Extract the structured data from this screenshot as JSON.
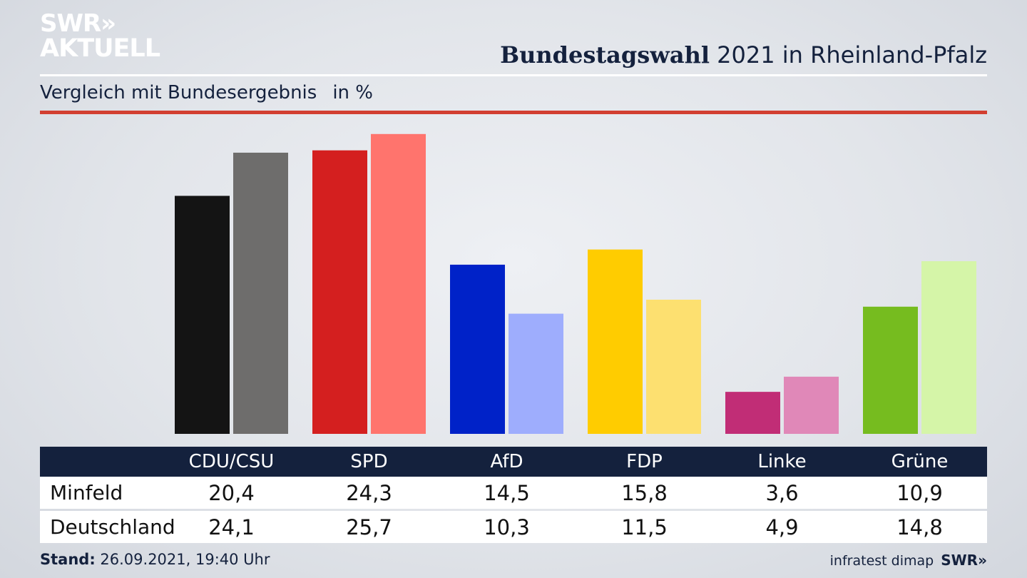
{
  "logo": {
    "line1": "SWR»",
    "line2": "AKTUELL"
  },
  "header": {
    "title_bold": "Bundestagswahl",
    "title_rest": " 2021 in Rheinland-Pfalz",
    "subtitle": "Vergleich mit Bundesergebnis",
    "unit": "in %"
  },
  "colors": {
    "accent_red": "#d23f31",
    "navy": "#14213d"
  },
  "chart_data": {
    "type": "bar",
    "categories": [
      "CDU/CSU",
      "SPD",
      "AfD",
      "FDP",
      "Linke",
      "Grüne"
    ],
    "series": [
      {
        "name": "Minfeld",
        "values": [
          20.4,
          24.3,
          14.5,
          15.8,
          3.6,
          10.9
        ],
        "colors": [
          "#141414",
          "#d41f1f",
          "#0022c8",
          "#ffcc00",
          "#c12d76",
          "#76bc1f"
        ]
      },
      {
        "name": "Deutschland",
        "values": [
          24.1,
          25.7,
          10.3,
          11.5,
          4.9,
          14.8
        ],
        "colors": [
          "#6e6d6c",
          "#ff746d",
          "#9eadfd",
          "#fde070",
          "#e088b8",
          "#d5f5a8"
        ]
      }
    ],
    "title": "Bundestagswahl 2021 in Rheinland-Pfalz",
    "subtitle": "Vergleich mit Bundesergebnis",
    "ylabel": "in %",
    "ylim": [
      0,
      26
    ],
    "grid": false,
    "legend": "table below chart"
  },
  "table": {
    "rows": [
      {
        "label": "Minfeld",
        "values": [
          "20,4",
          "24,3",
          "14,5",
          "15,8",
          "3,6",
          "10,9"
        ]
      },
      {
        "label": "Deutschland",
        "values": [
          "24,1",
          "25,7",
          "10,3",
          "11,5",
          "4,9",
          "14,8"
        ]
      }
    ]
  },
  "footer": {
    "stand_label": "Stand:",
    "stand_value": " 26.09.2021, 19:40 Uhr",
    "source": "infratest dimap",
    "brand": "SWR»"
  }
}
